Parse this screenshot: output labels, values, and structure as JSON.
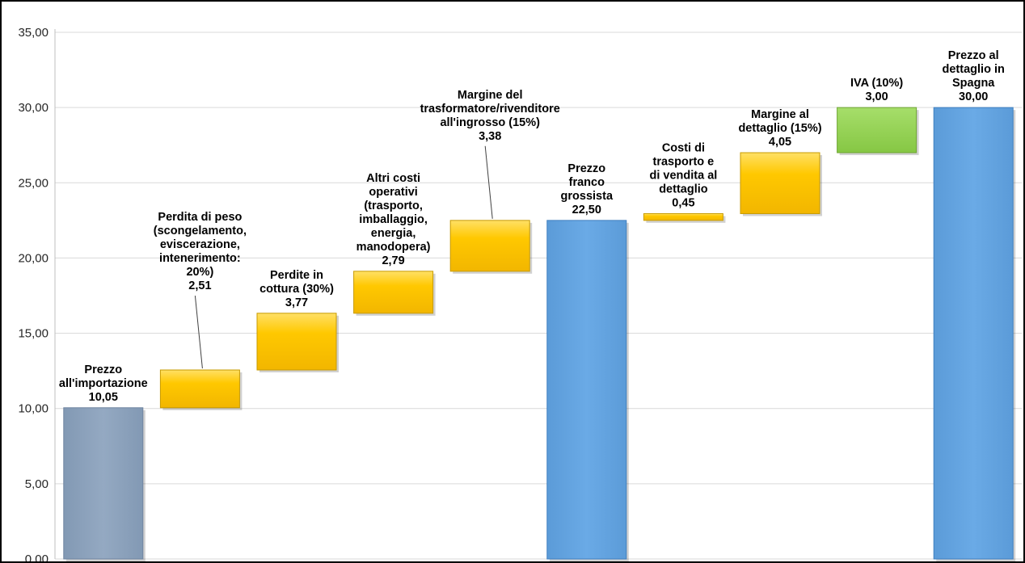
{
  "chart_data": {
    "type": "bar",
    "subtype": "waterfall",
    "title": "",
    "xlabel": "",
    "ylabel": "",
    "ylim": [
      0,
      35
    ],
    "yticks": [
      "0,00",
      "5,00",
      "10,00",
      "15,00",
      "20,00",
      "25,00",
      "30,00",
      "35,00"
    ],
    "grid": true,
    "legend": "none",
    "colors": {
      "start": "#8EA4BE",
      "total": "#62A3E1",
      "increment": "#FFC800",
      "tax": "#92D050"
    },
    "bars": [
      {
        "label": "Prezzo all'importazione",
        "label_lines": [
          "Prezzo",
          "all'importazione"
        ],
        "value_text": "10,05",
        "base": 0,
        "value": 10.05,
        "kind": "start",
        "leader": false
      },
      {
        "label": "Perdita di peso (scongelamento, eviscerazione, intenerimento: 20%)",
        "label_lines": [
          "Perdita di peso",
          "(scongelamento,",
          "eviscerazione,",
          "intenerimento:",
          "20%)"
        ],
        "value_text": "2,51",
        "base": 10.05,
        "value": 2.51,
        "kind": "increment",
        "leader": true
      },
      {
        "label": "Perdite in cottura (30%)",
        "label_lines": [
          "Perdite in",
          "cottura (30%)"
        ],
        "value_text": "3,77",
        "base": 12.56,
        "value": 3.77,
        "kind": "increment",
        "leader": false
      },
      {
        "label": "Altri costi operativi (trasporto, imballaggio, energia, manodopera)",
        "label_lines": [
          "Altri costi",
          "operativi",
          "(trasporto,",
          "imballaggio,",
          "energia,",
          "manodopera)"
        ],
        "value_text": "2,79",
        "base": 16.33,
        "value": 2.79,
        "kind": "increment",
        "leader": false
      },
      {
        "label": "Margine del trasformatore/rivenditore all'ingrosso (15%)",
        "label_lines": [
          "Margine del",
          "trasformatore/rivenditore",
          "all'ingrosso (15%)"
        ],
        "value_text": "3,38",
        "base": 19.12,
        "value": 3.38,
        "kind": "increment",
        "leader": true
      },
      {
        "label": "Prezzo franco grossista",
        "label_lines": [
          "Prezzo",
          "franco",
          "grossista"
        ],
        "value_text": "22,50",
        "base": 0,
        "value": 22.5,
        "kind": "total",
        "leader": false
      },
      {
        "label": "Costi di trasporto e di vendita al dettaglio",
        "label_lines": [
          "Costi di",
          "trasporto e",
          "di vendita al",
          "dettaglio"
        ],
        "value_text": "0,45",
        "base": 22.5,
        "value": 0.45,
        "kind": "increment",
        "leader": false
      },
      {
        "label": "Margine al dettaglio (15%)",
        "label_lines": [
          "Margine al",
          "dettaglio (15%)"
        ],
        "value_text": "4,05",
        "base": 22.95,
        "value": 4.05,
        "kind": "increment",
        "leader": false
      },
      {
        "label": "IVA (10%)",
        "label_lines": [
          "IVA (10%)"
        ],
        "value_text": "3,00",
        "base": 27.0,
        "value": 3.0,
        "kind": "tax",
        "leader": false
      },
      {
        "label": "Prezzo al dettaglio in Spagna",
        "label_lines": [
          "Prezzo al",
          "dettaglio in",
          "Spagna"
        ],
        "value_text": "30,00",
        "base": 0,
        "value": 30.0,
        "kind": "total",
        "leader": false
      }
    ]
  }
}
